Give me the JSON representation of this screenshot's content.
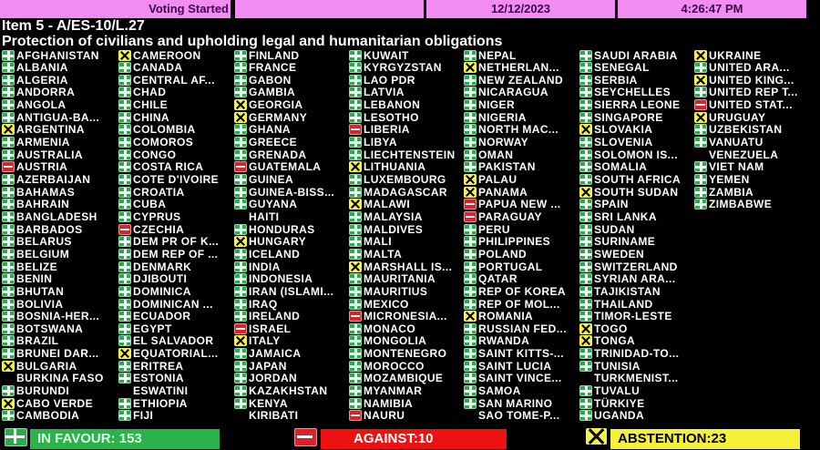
{
  "header": {
    "status": "Voting Started",
    "blank": "",
    "date": "12/12/2023",
    "time": "4:26:47 PM"
  },
  "item": "Item 5 - A/ES-10/L.27",
  "subject": "Protection of civilians and upholding legal and humanitarian obligations",
  "colors": {
    "yes": "#2fa84f",
    "no": "#d8232a",
    "abstain": "#f3f04a",
    "header": "#f28cf2"
  },
  "vote_legend": {
    "Y": "plus-icon (in favour)",
    "N": "minus-icon (against)",
    "A": "x-icon (abstention)",
    "": "no vote"
  },
  "columns": [
    [
      [
        "AFGHANISTAN",
        "Y"
      ],
      [
        "ALBANIA",
        "Y"
      ],
      [
        "ALGERIA",
        "Y"
      ],
      [
        "ANDORRA",
        "Y"
      ],
      [
        "ANGOLA",
        "Y"
      ],
      [
        "ANTIGUA-BA...",
        "Y"
      ],
      [
        "ARGENTINA",
        "A"
      ],
      [
        "ARMENIA",
        "Y"
      ],
      [
        "AUSTRALIA",
        "Y"
      ],
      [
        "AUSTRIA",
        "N"
      ],
      [
        "AZERBAIJAN",
        "Y"
      ],
      [
        "BAHAMAS",
        "Y"
      ],
      [
        "BAHRAIN",
        "Y"
      ],
      [
        "BANGLADESH",
        "Y"
      ],
      [
        "BARBADOS",
        "Y"
      ],
      [
        "BELARUS",
        "Y"
      ],
      [
        "BELGIUM",
        "Y"
      ],
      [
        "BELIZE",
        "Y"
      ],
      [
        "BENIN",
        "Y"
      ],
      [
        "BHUTAN",
        "Y"
      ],
      [
        "BOLIVIA",
        "Y"
      ],
      [
        "BOSNIA-HER...",
        "Y"
      ],
      [
        "BOTSWANA",
        "Y"
      ],
      [
        "BRAZIL",
        "Y"
      ],
      [
        "BRUNEI DAR...",
        "Y"
      ],
      [
        "BULGARIA",
        "A"
      ],
      [
        "BURKINA FASO",
        ""
      ],
      [
        "BURUNDI",
        "Y"
      ],
      [
        "CABO VERDE",
        "A"
      ],
      [
        "CAMBODIA",
        "Y"
      ]
    ],
    [
      [
        "CAMEROON",
        "A"
      ],
      [
        "CANADA",
        "Y"
      ],
      [
        "CENTRAL AF...",
        "Y"
      ],
      [
        "CHAD",
        "Y"
      ],
      [
        "CHILE",
        "Y"
      ],
      [
        "CHINA",
        "Y"
      ],
      [
        "COLOMBIA",
        "Y"
      ],
      [
        "COMOROS",
        "Y"
      ],
      [
        "CONGO",
        "Y"
      ],
      [
        "COSTA RICA",
        "Y"
      ],
      [
        "COTE D'IVOIRE",
        "Y"
      ],
      [
        "CROATIA",
        "Y"
      ],
      [
        "CUBA",
        "Y"
      ],
      [
        "CYPRUS",
        "Y"
      ],
      [
        "CZECHIA",
        "N"
      ],
      [
        "DEM PR OF K...",
        "Y"
      ],
      [
        "DEM REP OF ...",
        "Y"
      ],
      [
        "DENMARK",
        "Y"
      ],
      [
        "DJIBOUTI",
        "Y"
      ],
      [
        "DOMINICA",
        "Y"
      ],
      [
        "DOMINICAN ...",
        "Y"
      ],
      [
        "ECUADOR",
        "Y"
      ],
      [
        "EGYPT",
        "Y"
      ],
      [
        "EL SALVADOR",
        "Y"
      ],
      [
        "EQUATORIAL...",
        "A"
      ],
      [
        "ERITREA",
        "Y"
      ],
      [
        "ESTONIA",
        "Y"
      ],
      [
        "ESWATINI",
        ""
      ],
      [
        "ETHIOPIA",
        "Y"
      ],
      [
        "FIJI",
        "Y"
      ]
    ],
    [
      [
        "FINLAND",
        "Y"
      ],
      [
        "FRANCE",
        "Y"
      ],
      [
        "GABON",
        "Y"
      ],
      [
        "GAMBIA",
        "Y"
      ],
      [
        "GEORGIA",
        "A"
      ],
      [
        "GERMANY",
        "A"
      ],
      [
        "GHANA",
        "Y"
      ],
      [
        "GREECE",
        "Y"
      ],
      [
        "GRENADA",
        "Y"
      ],
      [
        "GUATEMALA",
        "N"
      ],
      [
        "GUINEA",
        "Y"
      ],
      [
        "GUINEA-BISS...",
        "Y"
      ],
      [
        "GUYANA",
        "Y"
      ],
      [
        "HAITI",
        ""
      ],
      [
        "HONDURAS",
        "Y"
      ],
      [
        "HUNGARY",
        "A"
      ],
      [
        "ICELAND",
        "Y"
      ],
      [
        "INDIA",
        "Y"
      ],
      [
        "INDONESIA",
        "Y"
      ],
      [
        "IRAN (ISLAMI...",
        "Y"
      ],
      [
        "IRAQ",
        "Y"
      ],
      [
        "IRELAND",
        "Y"
      ],
      [
        "ISRAEL",
        "N"
      ],
      [
        "ITALY",
        "A"
      ],
      [
        "JAMAICA",
        "Y"
      ],
      [
        "JAPAN",
        "Y"
      ],
      [
        "JORDAN",
        "Y"
      ],
      [
        "KAZAKHSTAN",
        "Y"
      ],
      [
        "KENYA",
        "Y"
      ],
      [
        "KIRIBATI",
        ""
      ]
    ],
    [
      [
        "KUWAIT",
        "Y"
      ],
      [
        "KYRGYZSTAN",
        "Y"
      ],
      [
        "LAO PDR",
        "Y"
      ],
      [
        "LATVIA",
        "Y"
      ],
      [
        "LEBANON",
        "Y"
      ],
      [
        "LESOTHO",
        "Y"
      ],
      [
        "LIBERIA",
        "N"
      ],
      [
        "LIBYA",
        "Y"
      ],
      [
        "LIECHTENSTEIN",
        "Y"
      ],
      [
        "LITHUANIA",
        "A"
      ],
      [
        "LUXEMBOURG",
        "Y"
      ],
      [
        "MADAGASCAR",
        "Y"
      ],
      [
        "MALAWI",
        "A"
      ],
      [
        "MALAYSIA",
        "Y"
      ],
      [
        "MALDIVES",
        "Y"
      ],
      [
        "MALI",
        "Y"
      ],
      [
        "MALTA",
        "Y"
      ],
      [
        "MARSHALL IS...",
        "A"
      ],
      [
        "MAURITANIA",
        "Y"
      ],
      [
        "MAURITIUS",
        "Y"
      ],
      [
        "MEXICO",
        "Y"
      ],
      [
        "MICRONESIA...",
        "N"
      ],
      [
        "MONACO",
        "Y"
      ],
      [
        "MONGOLIA",
        "Y"
      ],
      [
        "MONTENEGRO",
        "Y"
      ],
      [
        "MOROCCO",
        "Y"
      ],
      [
        "MOZAMBIQUE",
        "Y"
      ],
      [
        "MYANMAR",
        "Y"
      ],
      [
        "NAMIBIA",
        "Y"
      ],
      [
        "NAURU",
        "N"
      ]
    ],
    [
      [
        "NEPAL",
        "Y"
      ],
      [
        "NETHERLAN...",
        "A"
      ],
      [
        "NEW ZEALAND",
        "Y"
      ],
      [
        "NICARAGUA",
        "Y"
      ],
      [
        "NIGER",
        "Y"
      ],
      [
        "NIGERIA",
        "Y"
      ],
      [
        "NORTH MAC...",
        "Y"
      ],
      [
        "NORWAY",
        "Y"
      ],
      [
        "OMAN",
        "Y"
      ],
      [
        "PAKISTAN",
        "Y"
      ],
      [
        "PALAU",
        "A"
      ],
      [
        "PANAMA",
        "A"
      ],
      [
        "PAPUA NEW ...",
        "N"
      ],
      [
        "PARAGUAY",
        "N"
      ],
      [
        "PERU",
        "Y"
      ],
      [
        "PHILIPPINES",
        "Y"
      ],
      [
        "POLAND",
        "Y"
      ],
      [
        "PORTUGAL",
        "Y"
      ],
      [
        "QATAR",
        "Y"
      ],
      [
        "REP OF KOREA",
        "Y"
      ],
      [
        "REP OF MOL...",
        "Y"
      ],
      [
        "ROMANIA",
        "A"
      ],
      [
        "RUSSIAN FED...",
        "Y"
      ],
      [
        "RWANDA",
        "Y"
      ],
      [
        "SAINT KITTS-...",
        "Y"
      ],
      [
        "SAINT LUCIA",
        "Y"
      ],
      [
        "SAINT VINCE...",
        "Y"
      ],
      [
        "SAMOA",
        "Y"
      ],
      [
        "SAN MARINO",
        "Y"
      ],
      [
        "SAO TOME-P...",
        ""
      ]
    ],
    [
      [
        "SAUDI ARABIA",
        "Y"
      ],
      [
        "SENEGAL",
        "Y"
      ],
      [
        "SERBIA",
        "Y"
      ],
      [
        "SEYCHELLES",
        "Y"
      ],
      [
        "SIERRA LEONE",
        "Y"
      ],
      [
        "SINGAPORE",
        "Y"
      ],
      [
        "SLOVAKIA",
        "A"
      ],
      [
        "SLOVENIA",
        "Y"
      ],
      [
        "SOLOMON IS...",
        "Y"
      ],
      [
        "SOMALIA",
        "Y"
      ],
      [
        "SOUTH AFRICA",
        "Y"
      ],
      [
        "SOUTH SUDAN",
        "A"
      ],
      [
        "SPAIN",
        "Y"
      ],
      [
        "SRI LANKA",
        "Y"
      ],
      [
        "SUDAN",
        "Y"
      ],
      [
        "SURINAME",
        "Y"
      ],
      [
        "SWEDEN",
        "Y"
      ],
      [
        "SWITZERLAND",
        "Y"
      ],
      [
        "SYRIAN ARA...",
        "Y"
      ],
      [
        "TAJIKISTAN",
        "Y"
      ],
      [
        "THAILAND",
        "Y"
      ],
      [
        "TIMOR-LESTE",
        "Y"
      ],
      [
        "TOGO",
        "A"
      ],
      [
        "TONGA",
        "A"
      ],
      [
        "TRINIDAD-TO...",
        "Y"
      ],
      [
        "TUNISIA",
        "Y"
      ],
      [
        "TURKMENIST...",
        ""
      ],
      [
        "TUVALU",
        "Y"
      ],
      [
        "TÜRKIYE",
        "Y"
      ],
      [
        "UGANDA",
        "Y"
      ]
    ],
    [
      [
        "UKRAINE",
        "A"
      ],
      [
        "UNITED ARA...",
        "Y"
      ],
      [
        "UNITED KING...",
        "A"
      ],
      [
        "UNITED REP T...",
        "Y"
      ],
      [
        "UNITED STAT...",
        "N"
      ],
      [
        "URUGUAY",
        "A"
      ],
      [
        "UZBEKISTAN",
        "Y"
      ],
      [
        "VANUATU",
        "Y"
      ],
      [
        "VENEZUELA",
        ""
      ],
      [
        "VIET NAM",
        "Y"
      ],
      [
        "YEMEN",
        "Y"
      ],
      [
        "ZAMBIA",
        "Y"
      ],
      [
        "ZIMBABWE",
        "Y"
      ]
    ]
  ],
  "totals": {
    "in_favour": "IN FAVOUR: 153",
    "against": "AGAINST:10",
    "abstention": "ABSTENTION:23"
  }
}
